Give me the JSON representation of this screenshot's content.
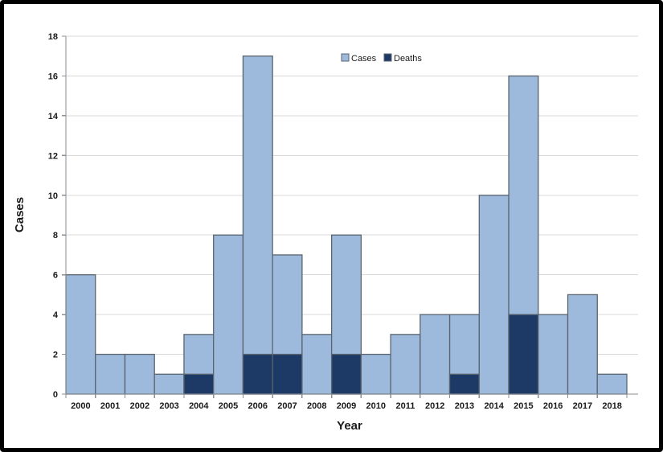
{
  "chart_data": {
    "type": "bar",
    "title": "",
    "xlabel": "Year",
    "ylabel": "Cases",
    "categories": [
      "2000",
      "2001",
      "2002",
      "2003",
      "2004",
      "2005",
      "2006",
      "2007",
      "2008",
      "2009",
      "2010",
      "2011",
      "2012",
      "2013",
      "2014",
      "2015",
      "2016",
      "2017",
      "2018"
    ],
    "series": [
      {
        "name": "Cases",
        "color": "#9db9db",
        "values": [
          6,
          2,
          2,
          1,
          3,
          8,
          17,
          7,
          3,
          8,
          2,
          3,
          4,
          4,
          10,
          16,
          4,
          5,
          1
        ]
      },
      {
        "name": "Deaths",
        "color": "#1d3a66",
        "values": [
          0,
          0,
          0,
          0,
          1,
          0,
          2,
          2,
          0,
          2,
          0,
          0,
          0,
          1,
          0,
          4,
          0,
          0,
          0
        ]
      }
    ],
    "ylim": [
      0,
      18
    ],
    "ytick_step": 2,
    "grid": true,
    "legend_position": "top-center",
    "bar_gap": 0
  },
  "styles": {
    "bar_border": "#5a6570",
    "grid_color": "#d8d8d8",
    "axis_color": "#898f94",
    "text_color": "#1a1a1a",
    "frame_border": "#000000",
    "background": "#ffffff"
  }
}
